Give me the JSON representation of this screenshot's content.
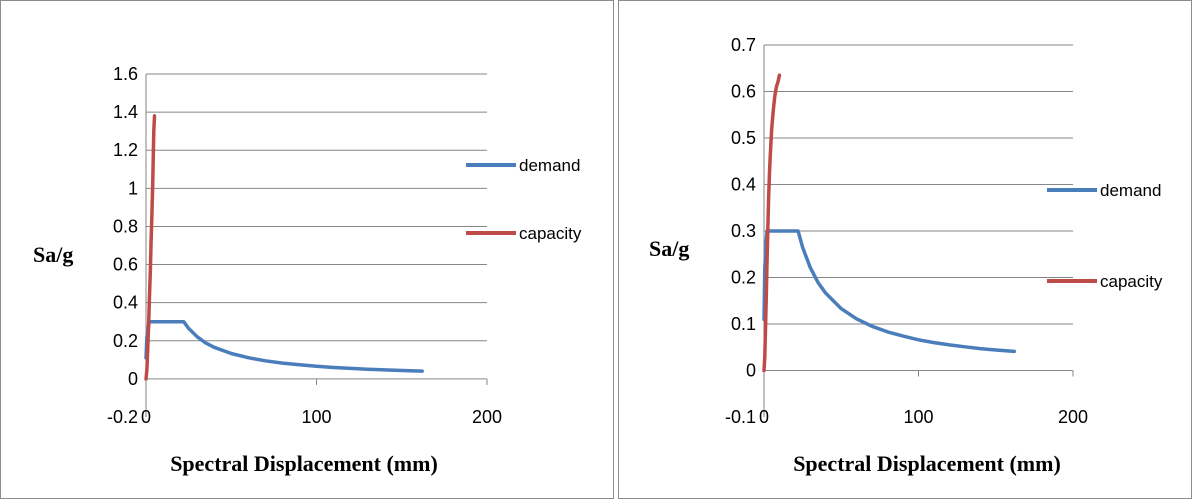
{
  "chart_data": [
    {
      "type": "line",
      "title": "",
      "xlabel": "Spectral Displacement (mm)",
      "ylabel": "Sa/g",
      "xlim": [
        0,
        200
      ],
      "ylim": [
        -0.2,
        1.6
      ],
      "x_ticks": [
        0,
        100,
        200
      ],
      "y_ticks": [
        -0.2,
        0,
        0.2,
        0.4,
        0.6,
        0.8,
        1,
        1.2,
        1.4,
        1.6
      ],
      "grid": "horizontal",
      "legend": "right",
      "series": [
        {
          "name": "demand",
          "color": "#4a7ebb",
          "x": [
            0,
            0.5,
            1.5,
            2.0,
            22.1,
            25,
            30,
            35,
            40,
            50,
            60,
            70,
            80,
            90,
            100,
            110,
            120,
            130,
            140,
            150,
            162
          ],
          "y": [
            0.11,
            0.22,
            0.28,
            0.3,
            0.3,
            0.265,
            0.221,
            0.189,
            0.166,
            0.133,
            0.111,
            0.095,
            0.083,
            0.074,
            0.066,
            0.06,
            0.055,
            0.051,
            0.047,
            0.044,
            0.041
          ]
        },
        {
          "name": "capacity",
          "color": "#be4b48",
          "x": [
            0,
            0.5,
            1,
            1.5,
            2,
            2.5,
            3,
            3.5,
            4,
            4.3,
            4.6,
            5
          ],
          "y": [
            0,
            0.05,
            0.15,
            0.28,
            0.42,
            0.56,
            0.72,
            0.88,
            1.04,
            1.18,
            1.3,
            1.38
          ]
        }
      ]
    },
    {
      "type": "line",
      "title": "",
      "xlabel": "Spectral Displacement (mm)",
      "ylabel": "Sa/g",
      "xlim": [
        0,
        200
      ],
      "ylim": [
        -0.1,
        0.7
      ],
      "x_ticks": [
        0,
        100,
        200
      ],
      "y_ticks": [
        -0.1,
        0,
        0.1,
        0.2,
        0.3,
        0.4,
        0.5,
        0.6,
        0.7
      ],
      "grid": "horizontal",
      "legend": "right",
      "series": [
        {
          "name": "demand",
          "color": "#4a7ebb",
          "x": [
            0,
            0.5,
            1.5,
            2.0,
            22.1,
            25,
            30,
            35,
            40,
            50,
            60,
            70,
            80,
            90,
            100,
            110,
            120,
            130,
            140,
            150,
            162
          ],
          "y": [
            0.11,
            0.22,
            0.28,
            0.3,
            0.3,
            0.265,
            0.221,
            0.189,
            0.166,
            0.133,
            0.111,
            0.095,
            0.083,
            0.074,
            0.066,
            0.06,
            0.055,
            0.051,
            0.047,
            0.044,
            0.041
          ]
        },
        {
          "name": "capacity",
          "color": "#be4b48",
          "x": [
            0,
            0.5,
            1,
            1.5,
            2,
            2.5,
            3,
            3.5,
            4,
            5,
            6,
            7,
            8,
            9,
            10
          ],
          "y": [
            0,
            0.03,
            0.09,
            0.16,
            0.24,
            0.31,
            0.37,
            0.42,
            0.46,
            0.52,
            0.56,
            0.59,
            0.61,
            0.62,
            0.635
          ]
        }
      ]
    }
  ]
}
